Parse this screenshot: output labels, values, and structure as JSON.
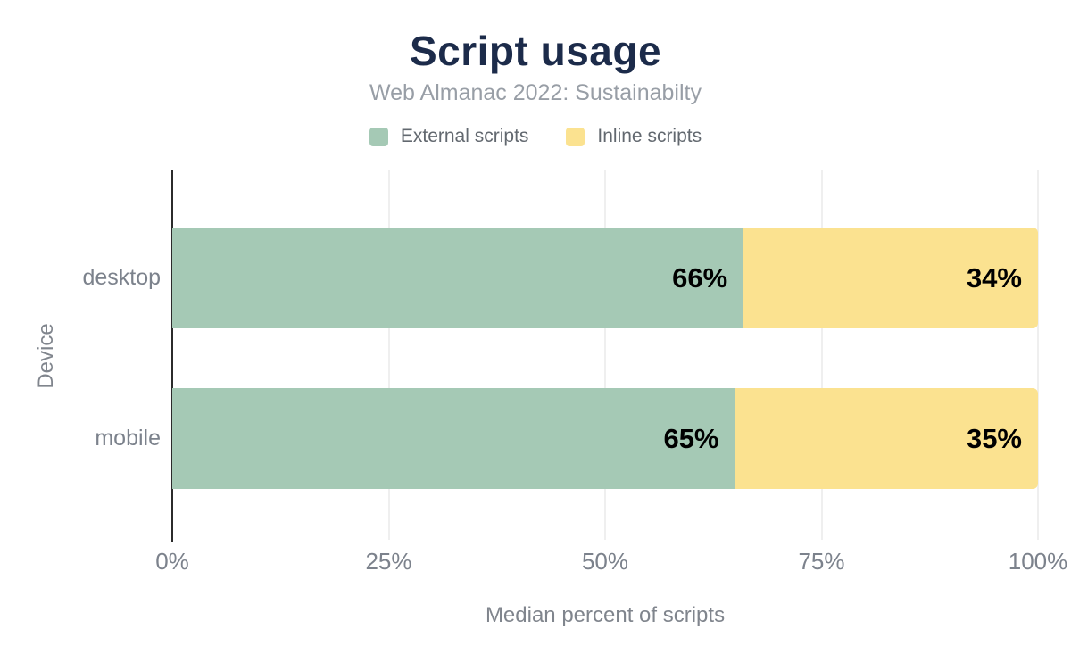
{
  "chart_data": {
    "type": "bar",
    "orientation": "horizontal",
    "stacked": true,
    "title": "Script usage",
    "subtitle": "Web Almanac 2022: Sustainabilty",
    "categories": [
      "desktop",
      "mobile"
    ],
    "series": [
      {
        "name": "External scripts",
        "color": "#a5c9b5",
        "values": [
          66,
          65
        ]
      },
      {
        "name": "Inline scripts",
        "color": "#fbe290",
        "values": [
          34,
          35
        ]
      }
    ],
    "data_labels": [
      [
        "66%",
        "34%"
      ],
      [
        "65%",
        "35%"
      ]
    ],
    "xlabel": "Median percent of scripts",
    "ylabel": "Device",
    "xlim": [
      0,
      100
    ],
    "xticks": [
      0,
      25,
      50,
      75,
      100
    ],
    "xtick_labels": [
      "0%",
      "25%",
      "50%",
      "75%",
      "100%"
    ],
    "grid": "vertical",
    "legend_position": "top"
  },
  "colors": {
    "title": "#1c2b4a",
    "subtitle": "#989ea6",
    "legend_text": "#62686f",
    "axis_text": "#7c828c",
    "axis_title_text": "#80858d",
    "axis_line": "#2b2b2b",
    "gridline": "#efefef",
    "data_label": "#000000"
  }
}
